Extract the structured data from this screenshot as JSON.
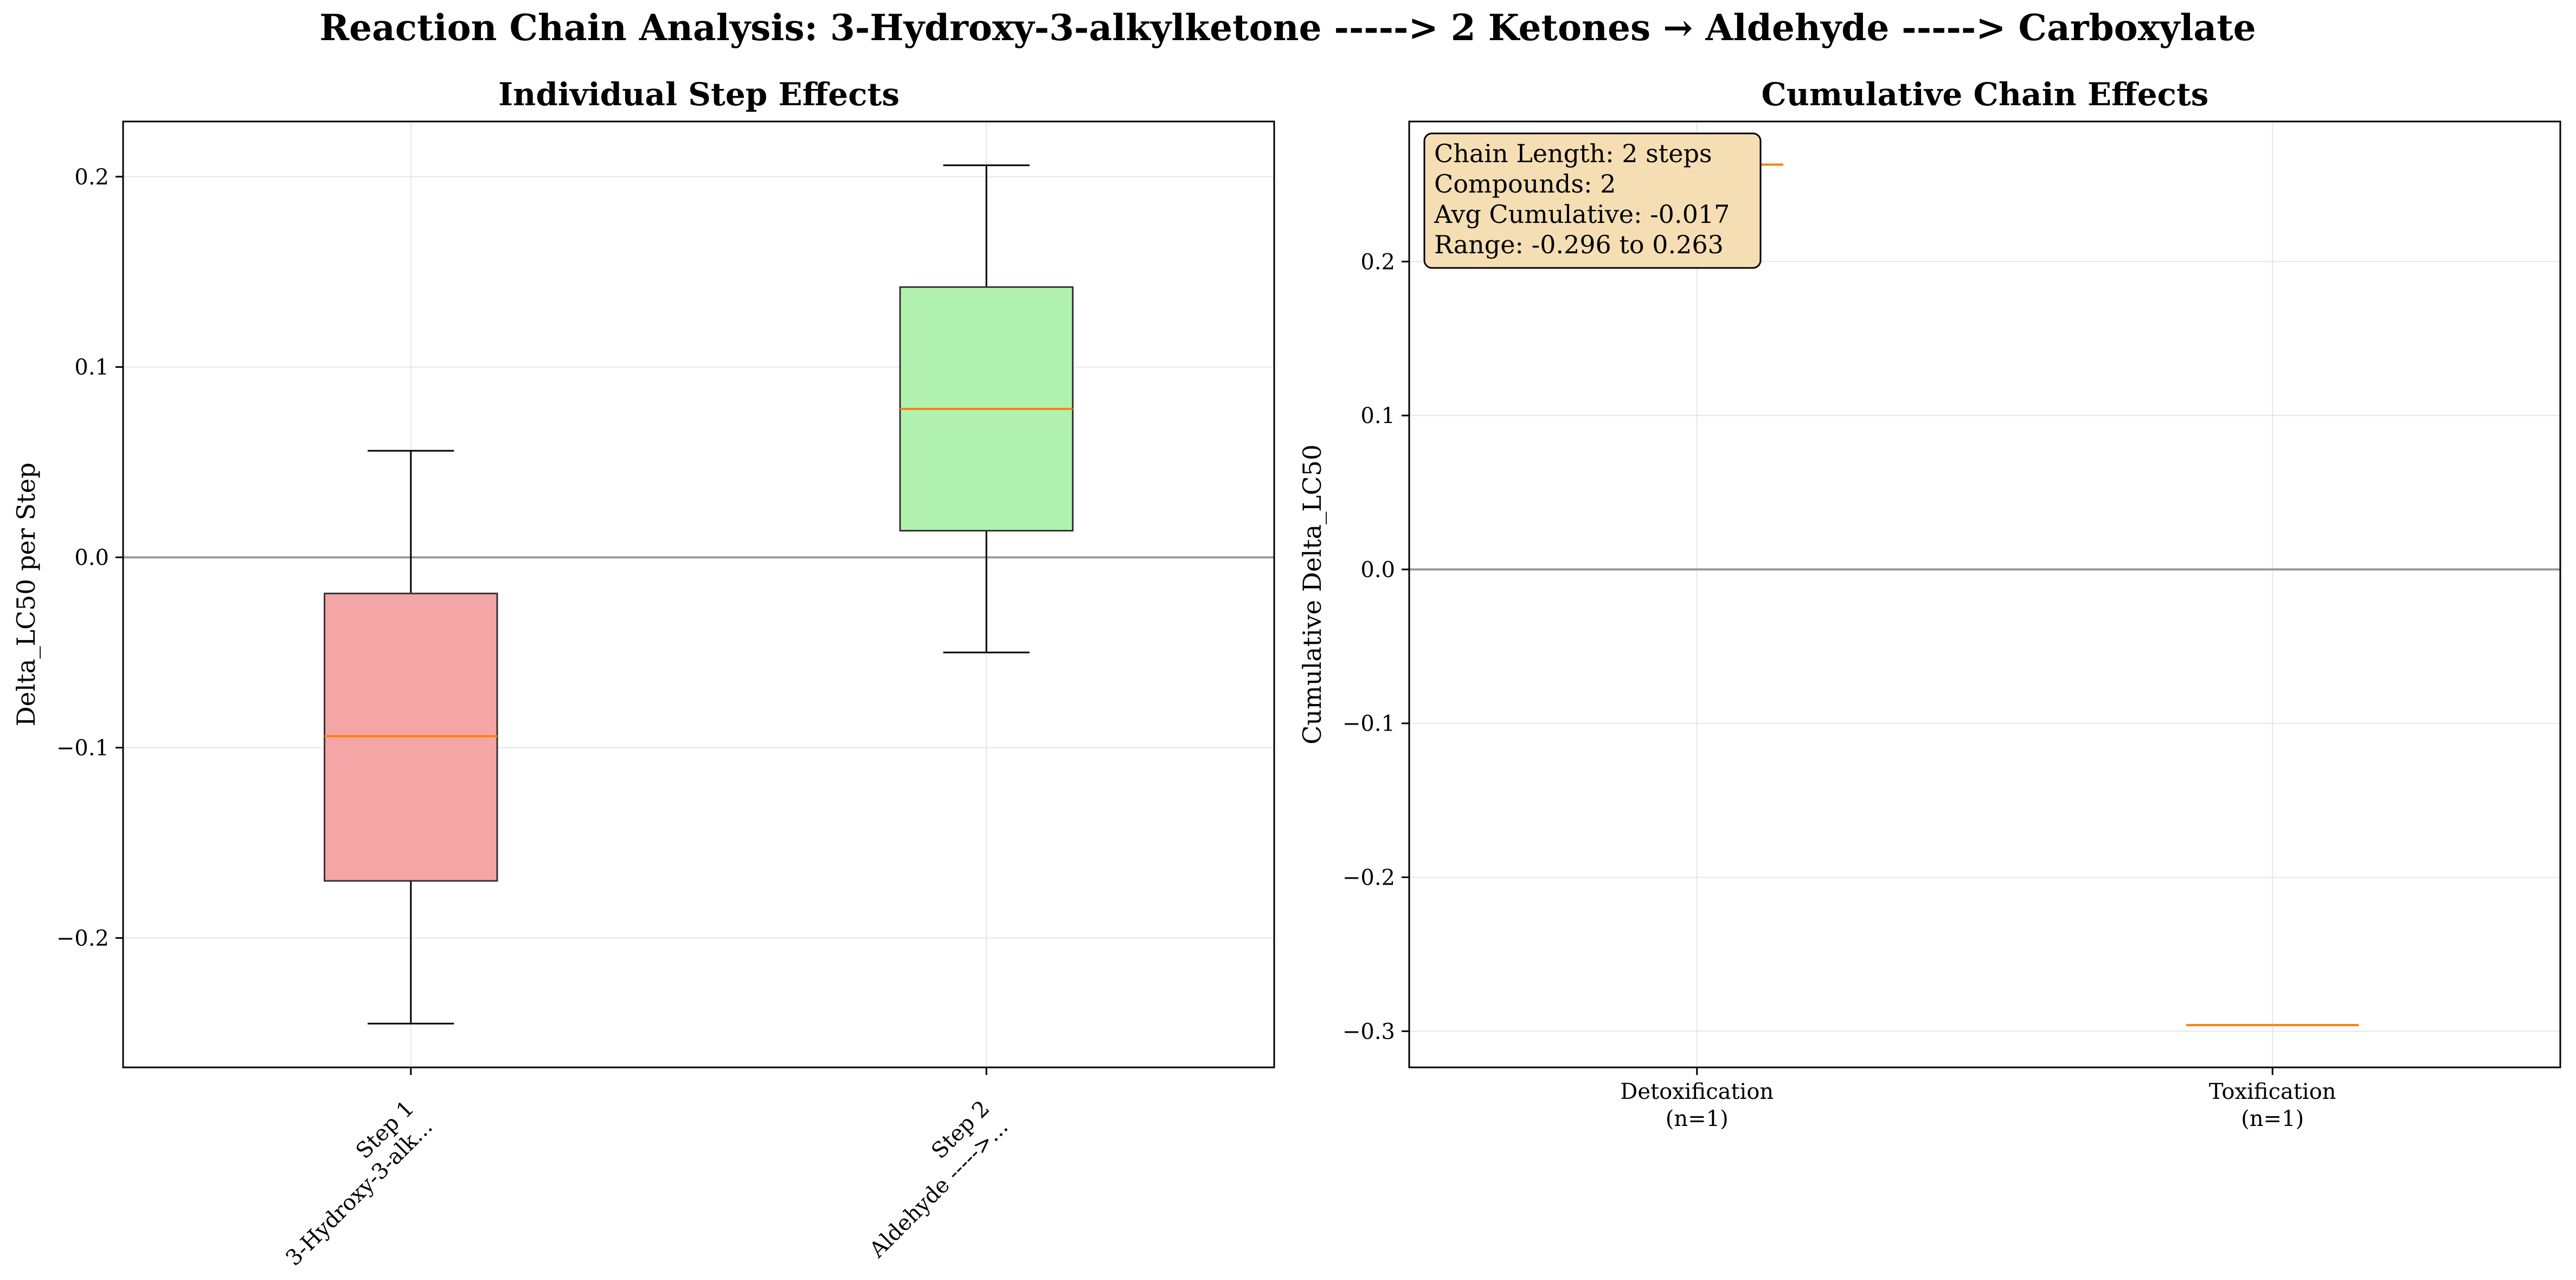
{
  "title": "Reaction Chain Analysis: 3-Hydroxy-3-alkylketone -----> 2 Ketones → Aldehyde -----> Carboxylate",
  "chart_data": [
    {
      "type": "box",
      "title": "Individual Step Effects",
      "xlabel": "",
      "ylabel": "Delta_LC50 per Step",
      "ylim": [
        -0.268,
        0.229
      ],
      "yticks": [
        -0.2,
        -0.1,
        0.0,
        0.1,
        0.2
      ],
      "ytick_labels": [
        "−0.2",
        "−0.1",
        "0.0",
        "0.1",
        "0.2"
      ],
      "grid": true,
      "reference_line_y": 0.0,
      "categories": [
        [
          "Step 1",
          "3-Hydroxy-3-alk..."
        ],
        [
          "Step 2",
          "Aldehyde ----->..."
        ]
      ],
      "boxes": [
        {
          "whisker_low": -0.245,
          "q1": -0.17,
          "median": -0.094,
          "q3": -0.019,
          "whisker_high": 0.056,
          "color": "#f4a6a6"
        },
        {
          "whisker_low": -0.05,
          "q1": 0.014,
          "median": 0.078,
          "q3": 0.142,
          "whisker_high": 0.206,
          "color": "#b2f2b0"
        }
      ]
    },
    {
      "type": "box",
      "title": "Cumulative Chain Effects",
      "xlabel": "",
      "ylabel": "Cumulative Delta_LC50",
      "ylim": [
        -0.3235,
        0.291
      ],
      "yticks": [
        -0.3,
        -0.2,
        -0.1,
        0.0,
        0.1,
        0.2
      ],
      "ytick_labels": [
        "−0.3",
        "−0.2",
        "−0.1",
        "0.0",
        "0.1",
        "0.2"
      ],
      "grid": true,
      "reference_line_y": 0.0,
      "categories": [
        [
          "Detoxification",
          "(n=1)"
        ],
        [
          "Toxification",
          "(n=1)"
        ]
      ],
      "boxes": [
        {
          "median": 0.263
        },
        {
          "median": -0.296
        }
      ],
      "annotation": [
        "Chain Length: 2 steps",
        "Compounds: 2",
        "Avg Cumulative: -0.017",
        "Range: -0.296 to 0.263"
      ],
      "annotation_placement": "top-left"
    }
  ],
  "colors": {
    "median": "#ff7f0e",
    "grid": "#e6e6e6",
    "zero_line": "#999999",
    "annotation_bg": "#f5deb3"
  }
}
